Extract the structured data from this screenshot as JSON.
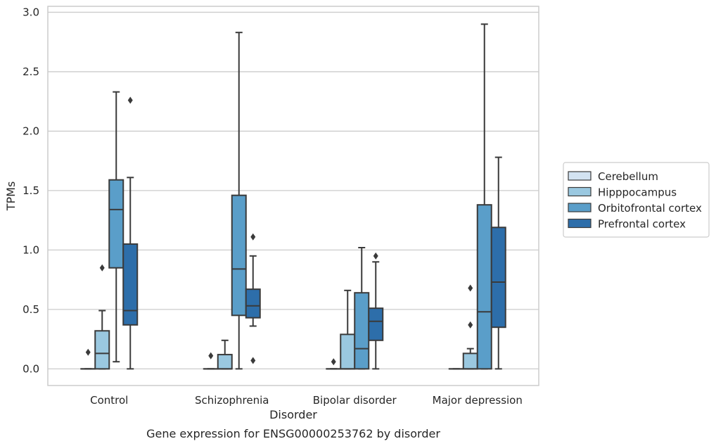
{
  "chart_data": {
    "type": "box",
    "title": "",
    "caption": "Gene expression for ENSG00000253762 by disorder",
    "xlabel": "Disorder",
    "ylabel": "TPMs",
    "ylim": [
      -0.14,
      3.05
    ],
    "yticks": [
      "0.0",
      "0.5",
      "1.0",
      "1.5",
      "2.0",
      "2.5",
      "3.0"
    ],
    "grid": "horizontal",
    "legend_position": "right",
    "categories": [
      "Control",
      "Schizophrenia",
      "Bipolar disorder",
      "Major depression"
    ],
    "series": [
      {
        "name": "Cerebellum",
        "color": "#d3e3f2",
        "boxes": [
          {
            "whisker_low": 0.0,
            "q1": 0.0,
            "median": 0.0,
            "q3": 0.0,
            "whisker_high": 0.0,
            "outliers": [
              0.14
            ]
          },
          {
            "whisker_low": 0.0,
            "q1": 0.0,
            "median": 0.0,
            "q3": 0.0,
            "whisker_high": 0.0,
            "outliers": [
              0.11
            ]
          },
          {
            "whisker_low": 0.0,
            "q1": 0.0,
            "median": 0.0,
            "q3": 0.0,
            "whisker_high": 0.0,
            "outliers": [
              0.06
            ]
          },
          {
            "whisker_low": 0.0,
            "q1": 0.0,
            "median": 0.0,
            "q3": 0.0,
            "whisker_high": 0.0,
            "outliers": []
          }
        ]
      },
      {
        "name": "Hipppocampus",
        "color": "#9ac8e0",
        "boxes": [
          {
            "whisker_low": 0.0,
            "q1": 0.0,
            "median": 0.13,
            "q3": 0.32,
            "whisker_high": 0.49,
            "outliers": [
              0.85
            ]
          },
          {
            "whisker_low": 0.0,
            "q1": 0.0,
            "median": 0.0,
            "q3": 0.12,
            "whisker_high": 0.24,
            "outliers": []
          },
          {
            "whisker_low": 0.0,
            "q1": 0.0,
            "median": 0.0,
            "q3": 0.29,
            "whisker_high": 0.66,
            "outliers": []
          },
          {
            "whisker_low": 0.0,
            "q1": 0.0,
            "median": 0.0,
            "q3": 0.13,
            "whisker_high": 0.17,
            "outliers": [
              0.37,
              0.68
            ]
          }
        ]
      },
      {
        "name": "Orbitofrontal cortex",
        "color": "#5a9ec9",
        "boxes": [
          {
            "whisker_low": 0.06,
            "q1": 0.85,
            "median": 1.34,
            "q3": 1.59,
            "whisker_high": 2.33,
            "outliers": []
          },
          {
            "whisker_low": 0.0,
            "q1": 0.45,
            "median": 0.84,
            "q3": 1.46,
            "whisker_high": 2.83,
            "outliers": []
          },
          {
            "whisker_low": 0.0,
            "q1": 0.0,
            "median": 0.17,
            "q3": 0.64,
            "whisker_high": 1.02,
            "outliers": []
          },
          {
            "whisker_low": 0.0,
            "q1": 0.0,
            "median": 0.48,
            "q3": 1.38,
            "whisker_high": 2.9,
            "outliers": []
          }
        ]
      },
      {
        "name": "Prefrontal cortex",
        "color": "#2d6eaa",
        "boxes": [
          {
            "whisker_low": 0.0,
            "q1": 0.37,
            "median": 0.49,
            "q3": 1.05,
            "whisker_high": 1.61,
            "outliers": [
              2.26
            ]
          },
          {
            "whisker_low": 0.36,
            "q1": 0.43,
            "median": 0.53,
            "q3": 0.67,
            "whisker_high": 0.95,
            "outliers": [
              1.11,
              0.07
            ]
          },
          {
            "whisker_low": 0.0,
            "q1": 0.24,
            "median": 0.4,
            "q3": 0.51,
            "whisker_high": 0.9,
            "outliers": [
              0.95
            ]
          },
          {
            "whisker_low": 0.0,
            "q1": 0.35,
            "median": 0.73,
            "q3": 1.19,
            "whisker_high": 1.78,
            "outliers": []
          }
        ]
      }
    ]
  }
}
